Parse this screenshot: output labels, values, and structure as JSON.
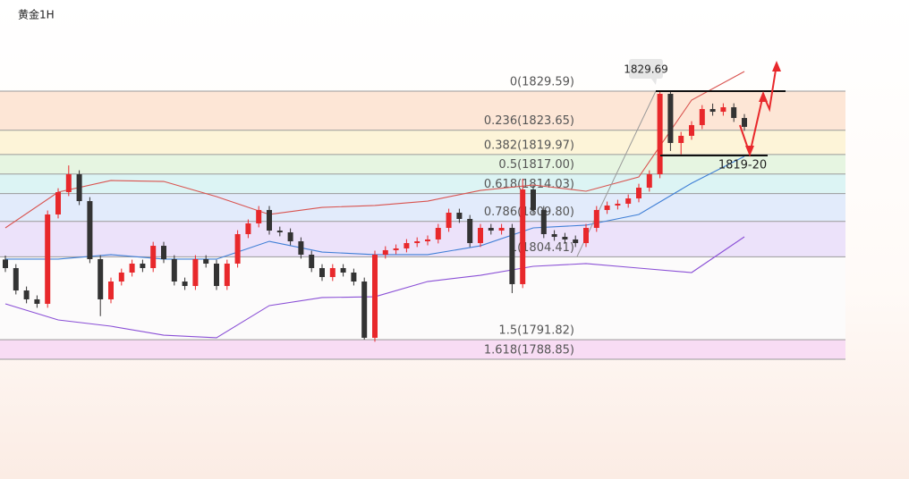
{
  "chart_data": {
    "type": "candlestick",
    "title": "黄金1H",
    "open": [
      1804.0,
      1802.7,
      1799.3,
      1797.95,
      1797.27,
      1810.85,
      1814.24,
      1816.96,
      1812.88,
      1804.06,
      1797.95,
      1800.66,
      1802.02,
      1803.38,
      1802.7,
      1806.09,
      1804.06,
      1800.66,
      1799.98,
      1804.06,
      1803.38,
      1799.98,
      1803.38,
      1807.86,
      1809.49,
      1811.53,
      1808.4,
      1808.13,
      1806.77,
      1804.74,
      1802.7,
      1801.34,
      1802.7,
      1802.02,
      1800.66,
      1792.11,
      1804.74,
      1805.42,
      1805.69,
      1806.5,
      1806.77,
      1807.05,
      1808.81,
      1811.12,
      1810.17,
      1806.5,
      1808.81,
      1808.4,
      1808.81,
      1800.26,
      1814.65,
      1811.53,
      1807.86,
      1807.45,
      1807.05,
      1806.5,
      1808.81,
      1811.53,
      1812.21,
      1812.48,
      1813.29,
      1814.92,
      1816.96,
      1829.18,
      1821.71,
      1822.8,
      1824.43,
      1826.87,
      1826.46,
      1827.14,
      1825.51
    ],
    "high": [
      1804.6,
      1803.3,
      1799.9,
      1798.55,
      1811.45,
      1814.84,
      1818.3,
      1817.56,
      1813.48,
      1804.66,
      1801.26,
      1802.62,
      1803.98,
      1803.98,
      1806.69,
      1806.69,
      1804.66,
      1801.26,
      1804.66,
      1804.66,
      1803.98,
      1803.98,
      1808.46,
      1810.09,
      1812.13,
      1812.13,
      1809.0,
      1808.73,
      1807.37,
      1805.34,
      1803.3,
      1803.3,
      1803.3,
      1802.62,
      1801.26,
      1805.34,
      1806.02,
      1806.29,
      1807.1,
      1807.37,
      1807.65,
      1809.41,
      1811.72,
      1811.72,
      1810.77,
      1809.41,
      1809.41,
      1809.41,
      1809.41,
      1816.28,
      1815.25,
      1812.13,
      1808.46,
      1808.05,
      1807.65,
      1809.41,
      1812.13,
      1812.81,
      1813.08,
      1813.89,
      1815.52,
      1817.56,
      1829.69,
      1829.5,
      1823.4,
      1825.03,
      1827.47,
      1827.7,
      1827.74,
      1827.74,
      1826.11
    ],
    "low": [
      1802.1,
      1798.7,
      1797.35,
      1796.67,
      1796.67,
      1810.25,
      1813.64,
      1812.28,
      1803.46,
      1795.4,
      1797.35,
      1800.06,
      1801.42,
      1802.1,
      1802.1,
      1803.46,
      1800.06,
      1799.38,
      1799.38,
      1802.78,
      1799.38,
      1799.38,
      1802.78,
      1807.26,
      1808.89,
      1807.8,
      1807.53,
      1806.17,
      1804.14,
      1802.1,
      1800.74,
      1800.74,
      1801.42,
      1800.06,
      1791.84,
      1791.51,
      1804.14,
      1804.82,
      1805.09,
      1805.9,
      1806.17,
      1806.45,
      1808.21,
      1809.57,
      1805.9,
      1805.9,
      1807.8,
      1807.8,
      1798.9,
      1799.66,
      1810.93,
      1807.26,
      1806.85,
      1806.45,
      1805.9,
      1805.9,
      1808.21,
      1810.93,
      1811.61,
      1811.88,
      1812.69,
      1814.32,
      1816.36,
      1820.5,
      1819.97,
      1822.2,
      1823.83,
      1825.86,
      1825.86,
      1824.91,
      1823.56
    ],
    "close": [
      1802.7,
      1799.3,
      1797.95,
      1797.27,
      1810.85,
      1814.24,
      1816.96,
      1812.88,
      1804.06,
      1797.95,
      1800.66,
      1802.02,
      1803.38,
      1802.7,
      1806.09,
      1804.06,
      1800.66,
      1799.98,
      1804.06,
      1803.38,
      1799.98,
      1803.38,
      1807.86,
      1809.49,
      1811.53,
      1808.4,
      1808.13,
      1806.77,
      1804.74,
      1802.7,
      1801.34,
      1802.7,
      1802.02,
      1800.66,
      1792.11,
      1804.74,
      1805.42,
      1805.69,
      1806.5,
      1806.77,
      1807.05,
      1808.81,
      1811.12,
      1810.17,
      1806.5,
      1808.81,
      1808.4,
      1808.81,
      1800.26,
      1814.65,
      1811.53,
      1807.86,
      1807.45,
      1807.05,
      1806.5,
      1808.81,
      1811.53,
      1812.21,
      1812.48,
      1813.29,
      1814.92,
      1816.96,
      1829.18,
      1821.71,
      1822.8,
      1824.43,
      1826.87,
      1826.46,
      1827.14,
      1825.51,
      1824.16
    ],
    "up_color": "#e8282b",
    "down_color": "#333333",
    "ylim": [
      1770.65,
      1843.44
    ],
    "fib_levels": [
      {
        "value": 1829.59,
        "label": "0(1829.59)"
      },
      {
        "value": 1823.65,
        "label": "0.236(1823.65)"
      },
      {
        "value": 1819.97,
        "label": "0.382(1819.97)"
      },
      {
        "value": 1817.0,
        "label": "0.5(1817.00)"
      },
      {
        "value": 1814.03,
        "label": "0.618(1814.03)"
      },
      {
        "value": 1809.8,
        "label": "0.786(1809.80)"
      },
      {
        "value": 1804.41,
        "label": "1(1804.41)"
      },
      {
        "value": 1791.82,
        "label": "1.5(1791.82)"
      },
      {
        "value": 1788.85,
        "label": "1.618(1788.85)"
      }
    ],
    "fib_band_colors": [
      "#fde6d6",
      "#fdf4d8",
      "#e6f5e1",
      "#dcf4f4",
      "#e2ebfb",
      "#ece2fa",
      "#fcfbfb",
      "#f8dcf4"
    ],
    "bollinger": {
      "x": [
        0,
        5,
        10,
        15,
        20,
        25,
        30,
        35,
        40,
        45,
        50,
        55,
        60,
        65,
        70
      ],
      "series": [
        {
          "color": "#d9534f",
          "values": [
            1808.81,
            1814.24,
            1816.01,
            1815.87,
            1813.56,
            1810.85,
            1811.93,
            1812.21,
            1812.88,
            1814.51,
            1815.33,
            1814.38,
            1816.55,
            1828.23,
            1832.58
          ]
        },
        {
          "color": "#3f7fd6",
          "values": [
            1804.06,
            1804.06,
            1804.74,
            1804.06,
            1804.06,
            1806.77,
            1805.14,
            1804.74,
            1804.74,
            1806.09,
            1808.81,
            1809.22,
            1810.85,
            1815.6,
            1819.67
          ]
        },
        {
          "color": "#8a4fd6",
          "values": [
            1797.27,
            1794.82,
            1793.87,
            1792.51,
            1792.11,
            1797.0,
            1798.22,
            1798.35,
            1800.66,
            1801.61,
            1802.97,
            1803.38,
            1802.7,
            1802.02,
            1807.45
          ]
        }
      ]
    },
    "annotations": [
      "1829.69",
      "1819-20"
    ]
  }
}
